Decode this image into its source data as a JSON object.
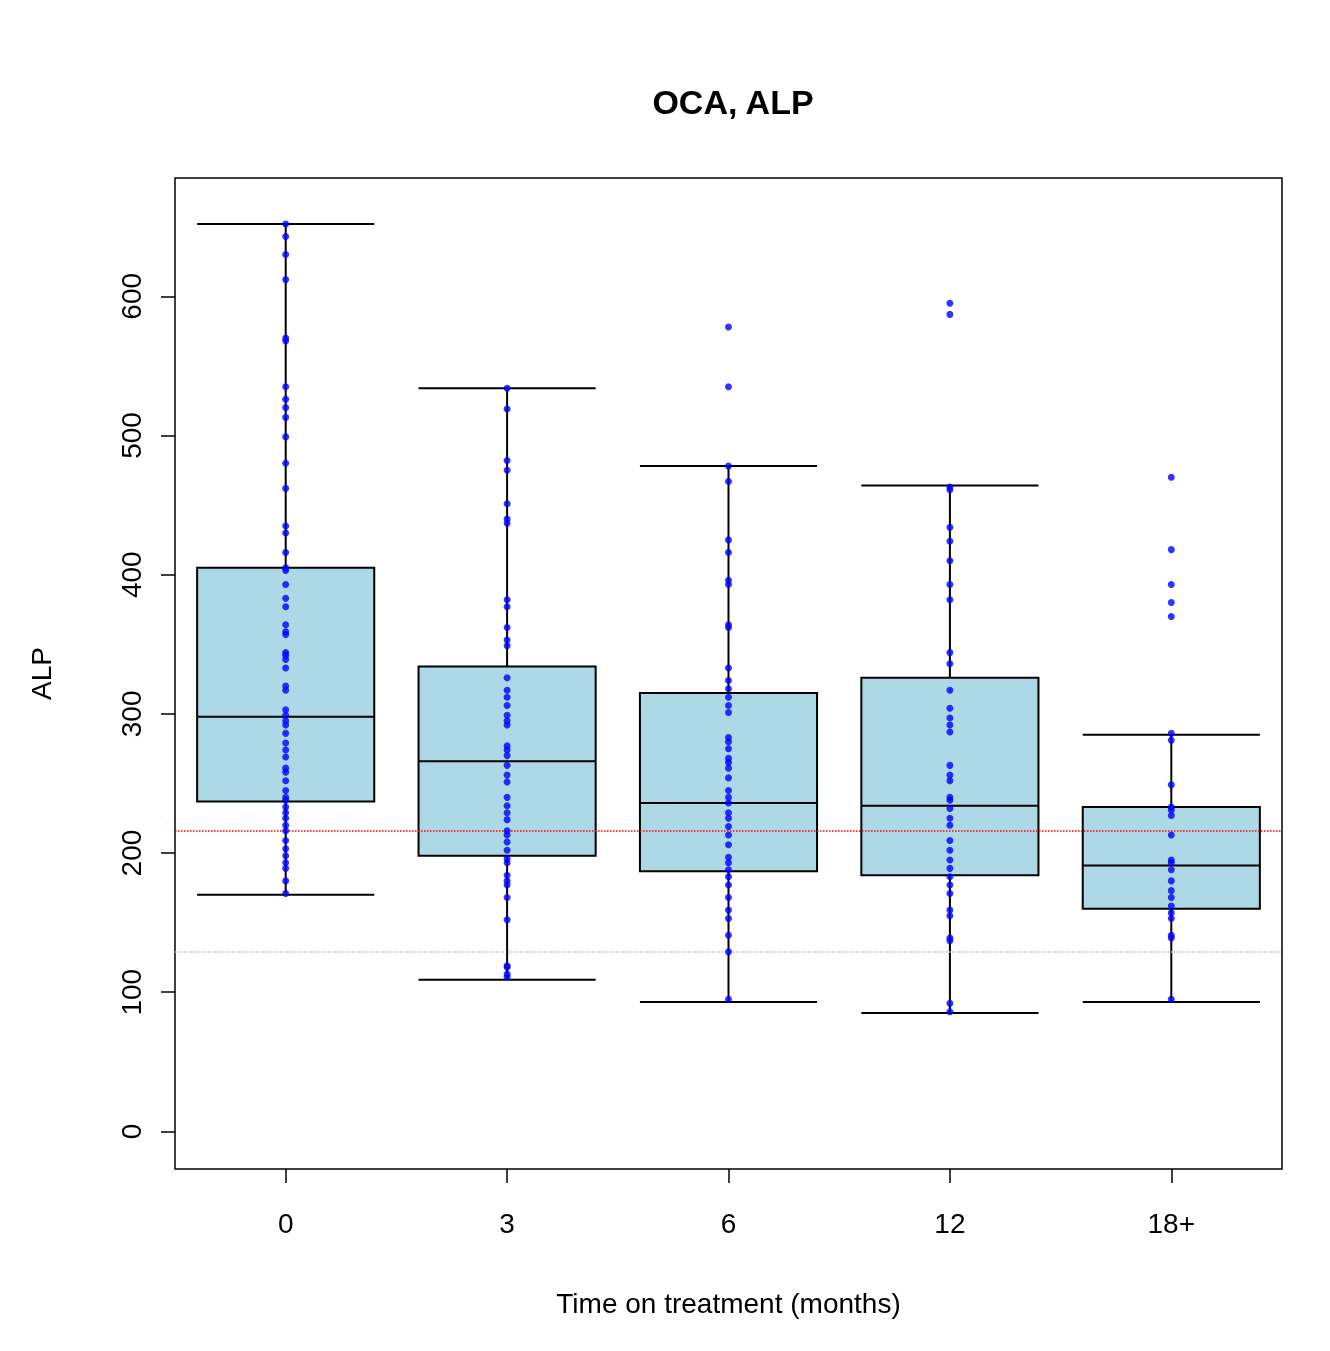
{
  "chart_data": {
    "type": "box",
    "title": "OCA, ALP",
    "xlabel": "Time on treatment (months)",
    "ylabel": "ALP",
    "categories": [
      "0",
      "3",
      "6",
      "12",
      "18+"
    ],
    "color": "#add8e6",
    "boxes": [
      {
        "low": 170,
        "q1": 237,
        "median": 298,
        "q3": 405,
        "high": 652
      },
      {
        "low": 109,
        "q1": 198,
        "median": 266,
        "q3": 334,
        "high": 534
      },
      {
        "low": 93,
        "q1": 187,
        "median": 236,
        "q3": 315,
        "high": 478
      },
      {
        "low": 85,
        "q1": 184,
        "median": 234,
        "q3": 326,
        "high": 464
      },
      {
        "low": 93,
        "q1": 160,
        "median": 191,
        "q3": 233,
        "high": 285
      }
    ],
    "series": [
      {
        "type": "scatter",
        "color": "#0000ff",
        "x": [
          "0",
          "0",
          "0",
          "0",
          "0",
          "0",
          "0",
          "0",
          "0",
          "0",
          "0",
          "0",
          "0",
          "0",
          "0",
          "0",
          "0",
          "0",
          "0",
          "0",
          "0",
          "0",
          "0",
          "0",
          "0",
          "0",
          "0",
          "0",
          "0",
          "0",
          "0",
          "0",
          "0",
          "0",
          "0",
          "0",
          "0",
          "0",
          "0",
          "0",
          "0",
          "0",
          "0",
          "0",
          "0",
          "0",
          "0",
          "0",
          "0",
          "0",
          "0",
          "0",
          "0",
          "0",
          "0",
          "0",
          "3",
          "3",
          "3",
          "3",
          "3",
          "3",
          "3",
          "3",
          "3",
          "3",
          "3",
          "3",
          "3",
          "3",
          "3",
          "3",
          "3",
          "3",
          "3",
          "3",
          "3",
          "3",
          "3",
          "3",
          "3",
          "3",
          "3",
          "3",
          "3",
          "3",
          "3",
          "3",
          "3",
          "3",
          "3",
          "3",
          "3",
          "3",
          "3",
          "3",
          "3",
          "3",
          "3",
          "3",
          "6",
          "6",
          "6",
          "6",
          "6",
          "6",
          "6",
          "6",
          "6",
          "6",
          "6",
          "6",
          "6",
          "6",
          "6",
          "6",
          "6",
          "6",
          "6",
          "6",
          "6",
          "6",
          "6",
          "6",
          "6",
          "6",
          "6",
          "6",
          "6",
          "6",
          "6",
          "6",
          "6",
          "6",
          "6",
          "6",
          "6",
          "6",
          "6",
          "6",
          "6",
          "6",
          "12",
          "12",
          "12",
          "12",
          "12",
          "12",
          "12",
          "12",
          "12",
          "12",
          "12",
          "12",
          "12",
          "12",
          "12",
          "12",
          "12",
          "12",
          "12",
          "12",
          "12",
          "12",
          "12",
          "12",
          "12",
          "12",
          "12",
          "12",
          "12",
          "12",
          "12",
          "12",
          "12",
          "12",
          "12",
          "12",
          "12",
          "18+",
          "18+",
          "18+",
          "18+",
          "18+",
          "18+",
          "18+",
          "18+",
          "18+",
          "18+",
          "18+",
          "18+",
          "18+",
          "18+",
          "18+",
          "18+",
          "18+",
          "18+",
          "18+",
          "18+",
          "18+",
          "18+",
          "18+",
          "18+"
        ],
        "values": [
          652,
          643,
          630,
          612,
          568,
          570,
          535,
          526,
          520,
          513,
          499,
          480,
          462,
          435,
          430,
          416,
          405,
          403,
          393,
          383,
          377,
          364,
          359,
          357,
          344,
          342,
          339,
          333,
          320,
          317,
          303,
          299,
          295,
          292,
          286,
          279,
          274,
          269,
          261,
          258,
          252,
          245,
          240,
          238,
          233,
          229,
          225,
          220,
          216,
          209,
          203,
          198,
          193,
          189,
          180,
          171,
          534,
          519,
          482,
          475,
          451,
          440,
          437,
          382,
          377,
          362,
          353,
          349,
          326,
          317,
          312,
          306,
          299,
          295,
          292,
          277,
          274,
          270,
          263,
          256,
          251,
          240,
          234,
          229,
          224,
          216,
          213,
          208,
          202,
          196,
          193,
          184,
          180,
          177,
          168,
          152,
          119,
          118,
          113,
          111,
          578,
          535,
          478,
          467,
          425,
          416,
          396,
          393,
          364,
          362,
          333,
          324,
          318,
          312,
          306,
          301,
          283,
          280,
          275,
          268,
          265,
          261,
          254,
          245,
          240,
          236,
          229,
          225,
          219,
          213,
          206,
          197,
          193,
          188,
          183,
          177,
          168,
          159,
          153,
          141,
          129,
          95,
          595,
          587,
          463,
          461,
          434,
          424,
          410,
          393,
          382,
          344,
          336,
          317,
          304,
          297,
          292,
          287,
          263,
          256,
          252,
          240,
          238,
          232,
          225,
          220,
          209,
          202,
          195,
          189,
          183,
          177,
          171,
          159,
          155,
          139,
          137,
          92,
          86,
          470,
          418,
          393,
          380,
          370,
          286,
          281,
          249,
          233,
          231,
          227,
          213,
          195,
          193,
          188,
          180,
          173,
          168,
          162,
          157,
          153,
          141,
          139,
          95
        ]
      }
    ],
    "marker": "circle",
    "ref_lines": [
      {
        "axis": "y",
        "value": 216,
        "color": "#ff0000",
        "line_style": "dotted"
      },
      {
        "axis": "y",
        "value": 129,
        "color": "#bebebe",
        "line_style": "dotted"
      }
    ],
    "ylim": [
      -27,
      685
    ],
    "yticks": [
      0,
      100,
      200,
      300,
      400,
      500,
      600
    ],
    "grid": false
  }
}
